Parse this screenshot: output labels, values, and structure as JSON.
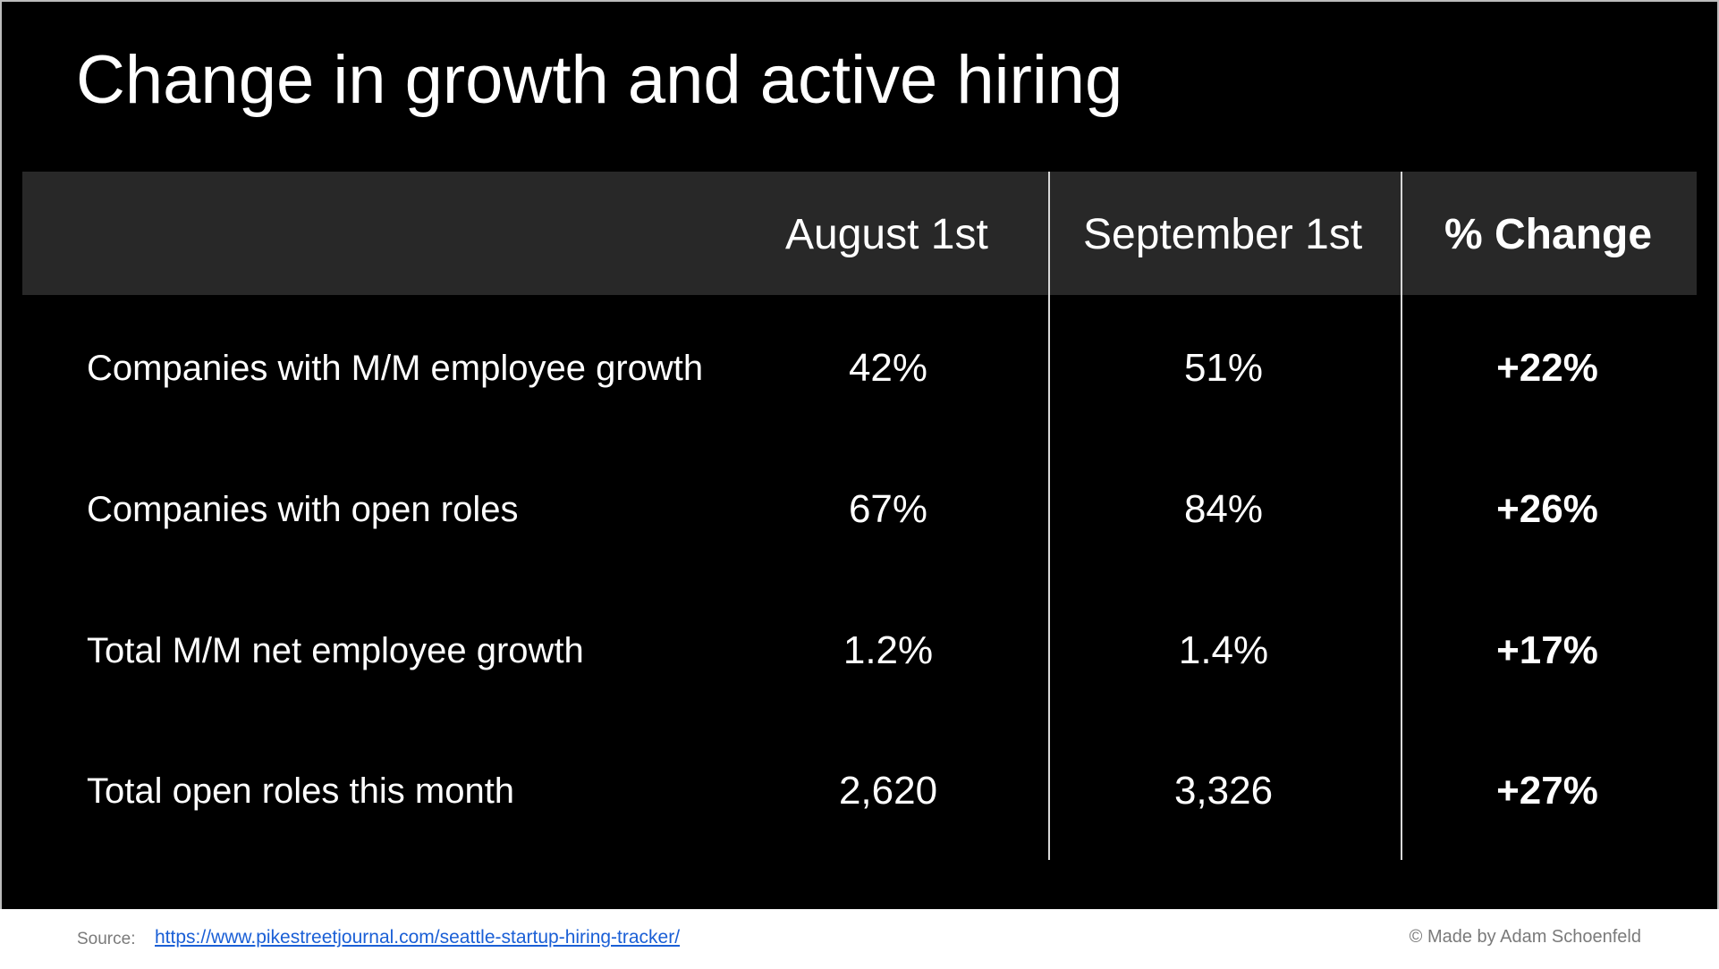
{
  "slide": {
    "title": "Change in growth and active hiring"
  },
  "table": {
    "headers": [
      "",
      "August 1st",
      "September 1st",
      "% Change"
    ],
    "rows": [
      {
        "label": "Companies with M/M employee growth",
        "aug": "42%",
        "sep": "51%",
        "change": "+22%"
      },
      {
        "label": "Companies with open roles",
        "aug": "67%",
        "sep": "84%",
        "change": "+26%"
      },
      {
        "label": "Total M/M net employee growth",
        "aug": "1.2%",
        "sep": "1.4%",
        "change": "+17%"
      },
      {
        "label": "Total open roles this month",
        "aug": "2,620",
        "sep": "3,326",
        "change": "+27%"
      }
    ]
  },
  "footer": {
    "source_label": "Source:",
    "source_link": "https://www.pikestreetjournal.com/seattle-startup-hiring-tracker/",
    "credit": "© Made by Adam Schoenfeld"
  },
  "colors": {
    "background": "#000000",
    "header_band": "#282828",
    "text": "#ffffff",
    "link": "#1a5fd6"
  }
}
